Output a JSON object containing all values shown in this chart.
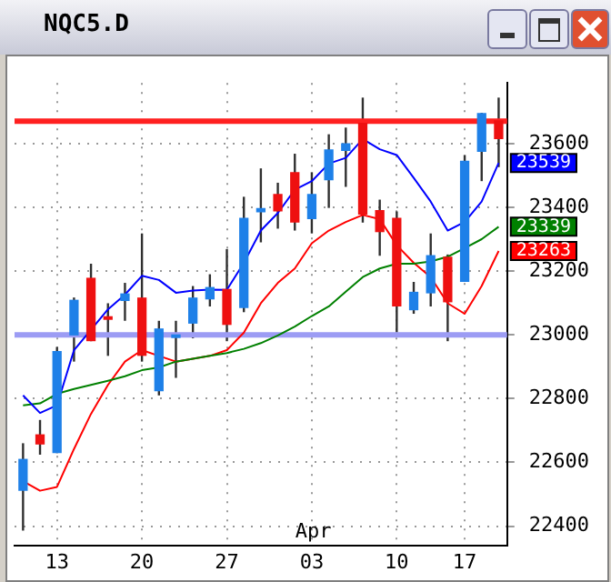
{
  "chart_data": {
    "type": "candlestick",
    "title": "NQC5.D",
    "categories": [
      null,
      null,
      "13",
      null,
      null,
      null,
      null,
      "20",
      null,
      null,
      null,
      null,
      "27",
      null,
      null,
      null,
      null,
      "03",
      null,
      null,
      null,
      null,
      "10",
      null,
      null,
      null,
      "17",
      null,
      null
    ],
    "ohlc": [
      [
        22511,
        22660,
        22386,
        22611
      ],
      [
        22688,
        22733,
        22624,
        22656
      ],
      [
        22629,
        22962,
        22629,
        22949
      ],
      [
        22998,
        23117,
        22916,
        23110
      ],
      [
        23179,
        23223,
        22980,
        22980
      ],
      [
        23053,
        23099,
        22934,
        23047
      ],
      [
        23106,
        23163,
        23044,
        23130
      ],
      [
        23117,
        23318,
        22916,
        22934
      ],
      [
        22823,
        23044,
        22810,
        23020
      ],
      [
        22990,
        23044,
        22865,
        22995
      ],
      [
        23035,
        23153,
        22989,
        23117
      ],
      [
        23111,
        23190,
        23089,
        23150
      ],
      [
        23144,
        23269,
        22980,
        23031
      ],
      [
        23084,
        23433,
        23071,
        23367
      ],
      [
        23384,
        23522,
        23290,
        23398
      ],
      [
        23442,
        23477,
        23333,
        23387
      ],
      [
        23510,
        23568,
        23327,
        23352
      ],
      [
        23363,
        23510,
        23318,
        23442
      ],
      [
        23485,
        23629,
        23398,
        23582
      ],
      [
        23577,
        23650,
        23464,
        23601
      ],
      [
        23665,
        23744,
        23352,
        23377
      ],
      [
        23391,
        23424,
        23248,
        23322
      ],
      [
        23367,
        23387,
        23007,
        23089
      ],
      [
        23077,
        23166,
        23066,
        23135
      ],
      [
        23130,
        23318,
        23089,
        23250
      ],
      [
        23245,
        23252,
        22980,
        23102
      ],
      [
        23166,
        23564,
        23166,
        23546
      ],
      [
        23574,
        23696,
        23482,
        23696
      ],
      [
        23673,
        23744,
        23526,
        23614
      ]
    ],
    "colors": [
      "#1e80e8",
      "#ee1010",
      "#1e80e8",
      "#1e80e8",
      "#ee1010",
      "#ee1010",
      "#1e80e8",
      "#ee1010",
      "#1e80e8",
      "#1e80e8",
      "#1e80e8",
      "#1e80e8",
      "#ee1010",
      "#1e80e8",
      "#1e80e8",
      "#ee1010",
      "#ee1010",
      "#1e80e8",
      "#1e80e8",
      "#1e80e8",
      "#ee1010",
      "#ee1010",
      "#ee1010",
      "#1e80e8",
      "#1e80e8",
      "#ee1010",
      "#1e80e8",
      "#1e80e8",
      "#ee1010"
    ],
    "series": [
      {
        "type": "line",
        "color": "#0000ff",
        "values": [
          22810,
          22755,
          22779,
          22952,
          23016,
          23080,
          23126,
          23185,
          23172,
          23132,
          23139,
          23142,
          23141,
          23226,
          23327,
          23382,
          23455,
          23482,
          23537,
          23555,
          23614,
          23582,
          23564,
          23492,
          23418,
          23327,
          23354,
          23418,
          23539
        ],
        "value_labels": [
          null,
          null,
          null,
          null,
          null,
          null,
          null,
          null,
          null,
          null,
          null,
          null,
          null,
          null,
          null,
          null,
          null,
          null,
          null,
          null,
          null,
          null,
          null,
          null,
          null,
          null,
          null,
          null,
          "23539"
        ]
      },
      {
        "type": "line",
        "color": "#008000",
        "values": [
          22779,
          22785,
          22815,
          22830,
          22843,
          22856,
          22870,
          22889,
          22898,
          22916,
          22925,
          22934,
          22943,
          22956,
          22974,
          22998,
          23026,
          23059,
          23089,
          23135,
          23181,
          23208,
          23223,
          23223,
          23230,
          23245,
          23272,
          23300,
          23339
        ],
        "value_labels": [
          null,
          null,
          null,
          null,
          null,
          null,
          null,
          null,
          null,
          null,
          null,
          null,
          null,
          null,
          null,
          null,
          null,
          null,
          null,
          null,
          null,
          null,
          null,
          null,
          null,
          null,
          null,
          null,
          "23339"
        ]
      },
      {
        "type": "line",
        "color": "#ff0000",
        "values": [
          22541,
          22511,
          22523,
          22642,
          22752,
          22843,
          22916,
          22952,
          22934,
          22916,
          22925,
          22934,
          22952,
          23007,
          23099,
          23163,
          23208,
          23287,
          23327,
          23354,
          23376,
          23363,
          23281,
          23226,
          23181,
          23099,
          23066,
          23153,
          23263
        ],
        "value_labels": [
          null,
          null,
          null,
          null,
          null,
          null,
          null,
          null,
          null,
          null,
          null,
          null,
          null,
          null,
          null,
          null,
          null,
          null,
          null,
          null,
          null,
          null,
          null,
          null,
          null,
          null,
          null,
          null,
          "23263"
        ]
      }
    ],
    "ylim": [
      22340,
      23790
    ],
    "yticks": [
      22400,
      22600,
      22800,
      23000,
      23200,
      23400,
      23600
    ],
    "grid": true,
    "legend": false,
    "ref_lines": [
      {
        "axis": "y",
        "value": 23670,
        "color": "#ff2020"
      },
      {
        "axis": "y",
        "value": 23000,
        "color": "#9c9cf4"
      }
    ],
    "annotations": [
      "Apr"
    ]
  }
}
